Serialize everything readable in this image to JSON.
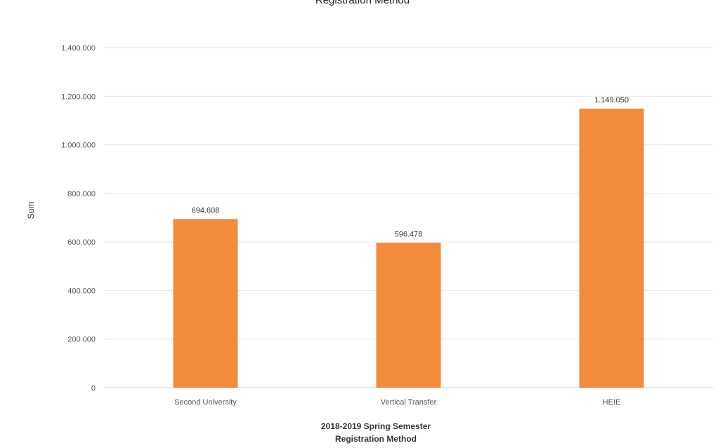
{
  "chart_data": {
    "type": "bar",
    "title": "Registration Method",
    "xlabel": [
      "2018-2019 Spring Semester",
      "Registration Method"
    ],
    "ylabel": "Sum",
    "categories": [
      "Second University",
      "Vertical Transfer",
      "HEIE"
    ],
    "series": [
      {
        "values": [
          694608,
          596478,
          1149050
        ],
        "data_labels": [
          "694.608",
          "596.478",
          "1.149.050"
        ]
      }
    ],
    "yticks": [
      0,
      200000,
      400000,
      600000,
      800000,
      1000000,
      1200000,
      1400000
    ],
    "ytick_labels": [
      "0",
      "200.000",
      "400.000",
      "600.000",
      "800.000",
      "1.000.000",
      "1.200.000",
      "1.400.000"
    ],
    "ylim": [
      0,
      1400000
    ],
    "grid": true,
    "legend": "none",
    "bar_color": "#f28c3c",
    "gridline_color": "#e6e6e6",
    "axis_color": "#d0d0d0"
  }
}
